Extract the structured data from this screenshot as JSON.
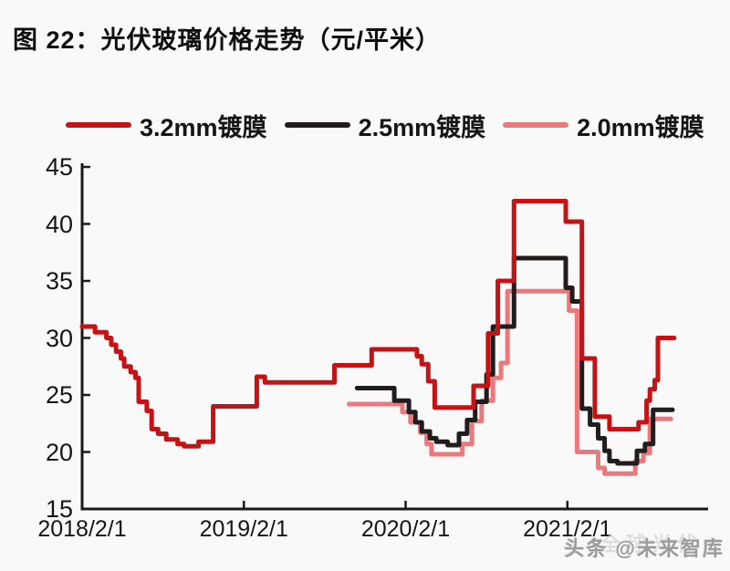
{
  "title": "图 22：光伏玻璃价格走势（元/平米）",
  "watermark": {
    "text": "头条 @未来智库",
    "echo": "全球光伏"
  },
  "chart_data": {
    "type": "line",
    "interpolation": "step-after",
    "title": "光伏玻璃价格走势（元/平米）",
    "xlabel": "",
    "ylabel": "元/平米",
    "grid": false,
    "legend_position": "top",
    "axis_color": "#1a1a1a",
    "x_unit": "years since 2018/2/1",
    "x_range": [
      0,
      3.87
    ],
    "y_range": [
      15,
      45
    ],
    "y_ticks": [
      45,
      40,
      35,
      30,
      25,
      20,
      15
    ],
    "x_ticks": [
      {
        "t": 0,
        "label": "2018/2/1"
      },
      {
        "t": 1,
        "label": "2019/2/1"
      },
      {
        "t": 2,
        "label": "2020/2/1"
      },
      {
        "t": 3,
        "label": "2021/2/1"
      }
    ],
    "series": [
      {
        "name": "3.2mm镀膜",
        "color": "#c41215",
        "end": 3.66,
        "points": [
          [
            0.0,
            31.0
          ],
          [
            0.08,
            30.5
          ],
          [
            0.15,
            30.0
          ],
          [
            0.18,
            29.4
          ],
          [
            0.21,
            28.8
          ],
          [
            0.24,
            28.2
          ],
          [
            0.26,
            27.5
          ],
          [
            0.3,
            27.0
          ],
          [
            0.33,
            26.5
          ],
          [
            0.35,
            24.4
          ],
          [
            0.4,
            23.6
          ],
          [
            0.43,
            22.0
          ],
          [
            0.47,
            21.6
          ],
          [
            0.52,
            21.1
          ],
          [
            0.59,
            20.7
          ],
          [
            0.63,
            20.5
          ],
          [
            0.72,
            20.9
          ],
          [
            0.81,
            24.0
          ],
          [
            1.08,
            26.6
          ],
          [
            1.13,
            26.1
          ],
          [
            1.56,
            27.6
          ],
          [
            1.79,
            29.0
          ],
          [
            2.07,
            28.4
          ],
          [
            2.1,
            27.7
          ],
          [
            2.14,
            26.2
          ],
          [
            2.18,
            23.9
          ],
          [
            2.42,
            25.8
          ],
          [
            2.51,
            30.4
          ],
          [
            2.57,
            35.0
          ],
          [
            2.67,
            42.0
          ],
          [
            2.99,
            40.2
          ],
          [
            3.09,
            28.2
          ],
          [
            3.17,
            23.1
          ],
          [
            3.26,
            22.0
          ],
          [
            3.44,
            22.6
          ],
          [
            3.49,
            24.5
          ],
          [
            3.51,
            25.5
          ],
          [
            3.54,
            26.3
          ],
          [
            3.56,
            30.0
          ]
        ]
      },
      {
        "name": "2.5mm镀膜",
        "color": "#221d1d",
        "end": 3.65,
        "points": [
          [
            1.7,
            25.6
          ],
          [
            1.93,
            24.5
          ],
          [
            2.02,
            23.5
          ],
          [
            2.06,
            22.6
          ],
          [
            2.1,
            21.8
          ],
          [
            2.15,
            21.2
          ],
          [
            2.19,
            20.9
          ],
          [
            2.26,
            20.6
          ],
          [
            2.33,
            21.6
          ],
          [
            2.38,
            22.8
          ],
          [
            2.43,
            24.4
          ],
          [
            2.5,
            26.8
          ],
          [
            2.54,
            31.0
          ],
          [
            2.67,
            37.0
          ],
          [
            2.99,
            34.4
          ],
          [
            3.03,
            33.2
          ],
          [
            3.09,
            23.8
          ],
          [
            3.14,
            22.4
          ],
          [
            3.19,
            21.2
          ],
          [
            3.23,
            20.1
          ],
          [
            3.26,
            19.2
          ],
          [
            3.31,
            19.0
          ],
          [
            3.43,
            20.1
          ],
          [
            3.48,
            20.7
          ],
          [
            3.53,
            23.7
          ]
        ]
      },
      {
        "name": "2.0mm镀膜",
        "color": "#ea797b",
        "end": 3.64,
        "points": [
          [
            1.65,
            24.2
          ],
          [
            1.98,
            23.5
          ],
          [
            2.03,
            22.6
          ],
          [
            2.09,
            21.7
          ],
          [
            2.13,
            20.7
          ],
          [
            2.16,
            19.8
          ],
          [
            2.35,
            20.7
          ],
          [
            2.41,
            22.7
          ],
          [
            2.47,
            24.5
          ],
          [
            2.54,
            26.5
          ],
          [
            2.59,
            27.8
          ],
          [
            2.63,
            34.1
          ],
          [
            3.01,
            32.4
          ],
          [
            3.06,
            20.0
          ],
          [
            3.19,
            18.6
          ],
          [
            3.23,
            18.1
          ],
          [
            3.42,
            19.2
          ],
          [
            3.47,
            19.9
          ],
          [
            3.51,
            22.9
          ]
        ]
      }
    ]
  }
}
